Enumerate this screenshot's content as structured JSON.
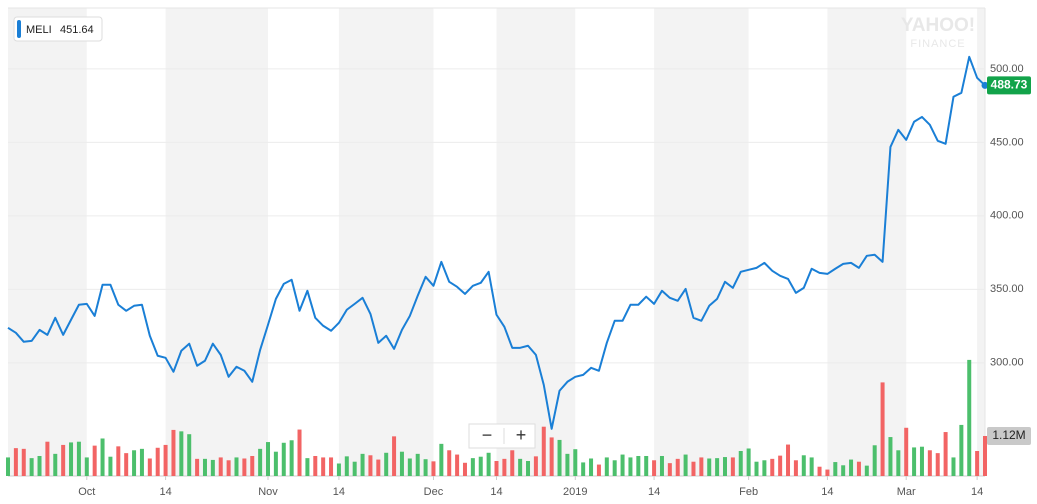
{
  "chart_data": {
    "type": "line",
    "watermark": [
      "YAHOO!",
      "FINANCE"
    ],
    "legend_value": 451.64,
    "controls": [
      "−",
      "+"
    ],
    "categories": [
      null,
      null,
      null,
      null,
      null,
      null,
      null,
      null,
      null,
      null,
      "Oct",
      null,
      null,
      null,
      null,
      null,
      null,
      null,
      null,
      null,
      "14",
      null,
      null,
      null,
      null,
      null,
      null,
      null,
      null,
      null,
      null,
      null,
      null,
      "Nov",
      null,
      null,
      null,
      null,
      null,
      null,
      null,
      null,
      "14",
      null,
      null,
      null,
      null,
      null,
      null,
      null,
      null,
      null,
      null,
      null,
      "Dec",
      null,
      null,
      null,
      null,
      null,
      null,
      null,
      "14",
      null,
      null,
      null,
      null,
      null,
      null,
      null,
      null,
      null,
      "2019",
      null,
      null,
      null,
      null,
      null,
      null,
      null,
      null,
      null,
      "14",
      null,
      null,
      null,
      null,
      null,
      null,
      null,
      null,
      null,
      null,
      null,
      "Feb",
      null,
      null,
      null,
      null,
      null,
      null,
      null,
      null,
      null,
      "14",
      null,
      null,
      null,
      null,
      null,
      null,
      null,
      null,
      null,
      "Mar",
      null,
      null,
      null,
      null,
      null,
      null,
      null,
      null,
      "14",
      null
    ],
    "series": [
      {
        "name": "MELI",
        "color": "#1a7fd6",
        "values": [
          323.8,
          320.4,
          314.3,
          314.9,
          322.4,
          319.0,
          330.6,
          319.0,
          329.3,
          339.5,
          340.1,
          331.9,
          353.1,
          353.1,
          339.5,
          335.4,
          338.8,
          339.5,
          318.4,
          304.8,
          303.4,
          293.9,
          308.2,
          313.0,
          298.0,
          301.4,
          313.0,
          305.4,
          290.5,
          297.3,
          294.6,
          287.1,
          308.8,
          325.9,
          343.5,
          353.7,
          356.5,
          335.4,
          349.0,
          330.6,
          325.2,
          321.8,
          327.2,
          336.1,
          340.1,
          344.2,
          333.3,
          313.6,
          318.4,
          309.5,
          322.4,
          331.9,
          345.6,
          358.5,
          352.4,
          368.7,
          355.1,
          351.7,
          346.9,
          352.4,
          354.4,
          361.9,
          332.7,
          324.5,
          310.2,
          310.2,
          311.6,
          305.4,
          285.0,
          255.1,
          281.0,
          287.1,
          290.5,
          291.8,
          296.6,
          294.6,
          313.6,
          328.6,
          328.6,
          339.5,
          339.5,
          345.0,
          340.1,
          349.0,
          344.2,
          342.2,
          350.3,
          330.6,
          328.6,
          338.8,
          343.5,
          355.1,
          351.0,
          361.9,
          363.3,
          364.6,
          368.0,
          362.6,
          359.2,
          357.1,
          347.6,
          351.0,
          364.0,
          361.2,
          360.5,
          364.0,
          367.3,
          368.0,
          364.6,
          372.8,
          373.5,
          368.7,
          446.9,
          458.5,
          451.7,
          464.0,
          467.3,
          461.9,
          451.0,
          449.0,
          481.0,
          483.7,
          508.2,
          493.9,
          488.73
        ]
      },
      {
        "name": "Volume",
        "axis": "y2",
        "up_color": "#4cbf6c",
        "down_color": "#f26464",
        "values": [
          520000,
          780000,
          760000,
          500000,
          560000,
          960000,
          620000,
          870000,
          940000,
          960000,
          520000,
          850000,
          1050000,
          540000,
          830000,
          640000,
          720000,
          760000,
          490000,
          790000,
          870000,
          1290000,
          1250000,
          1170000,
          480000,
          480000,
          450000,
          520000,
          440000,
          520000,
          490000,
          560000,
          760000,
          950000,
          680000,
          930000,
          1000000,
          1300000,
          500000,
          560000,
          520000,
          520000,
          350000,
          550000,
          400000,
          620000,
          580000,
          460000,
          650000,
          1110000,
          680000,
          490000,
          620000,
          470000,
          410000,
          900000,
          720000,
          600000,
          370000,
          500000,
          540000,
          650000,
          420000,
          480000,
          720000,
          480000,
          420000,
          550000,
          1380000,
          1080000,
          1010000,
          620000,
          750000,
          380000,
          490000,
          320000,
          520000,
          440000,
          600000,
          520000,
          560000,
          560000,
          440000,
          560000,
          360000,
          480000,
          600000,
          400000,
          520000,
          490000,
          500000,
          530000,
          520000,
          700000,
          770000,
          400000,
          440000,
          480000,
          570000,
          880000,
          440000,
          580000,
          520000,
          260000,
          180000,
          390000,
          300000,
          460000,
          400000,
          290000,
          860000,
          2620000,
          1090000,
          720000,
          1350000,
          800000,
          820000,
          720000,
          640000,
          1230000,
          520000,
          1430000,
          3250000,
          700000,
          1120000
        ],
        "value_labels": {
          "124": "1.12M"
        }
      }
    ],
    "ylim": [
      223,
      541.4
    ],
    "yticks": [
      {
        "value": 300,
        "label": "300.00"
      },
      {
        "value": 350,
        "label": "350.00"
      },
      {
        "value": 400,
        "label": "400.00"
      },
      {
        "value": 450,
        "label": "450.00"
      },
      {
        "value": 500,
        "label": "500.00"
      }
    ],
    "y2lim": [
      0,
      13100000
    ],
    "grid": true,
    "band_color": "#f3f3f3",
    "last_label_color": "#12a34a"
  }
}
